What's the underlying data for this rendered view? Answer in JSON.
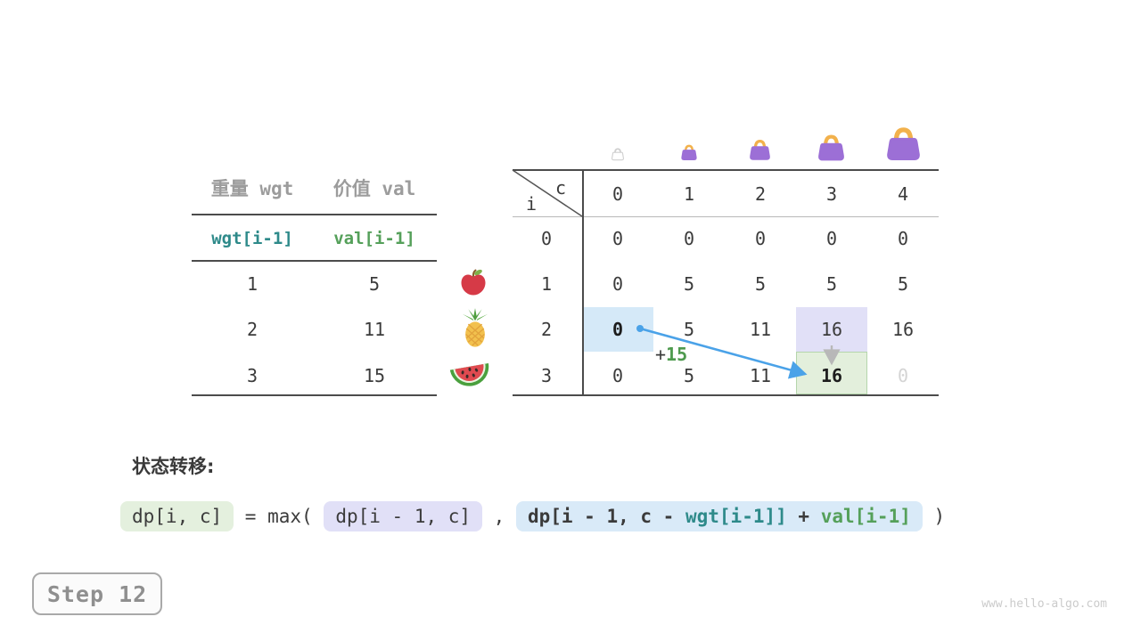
{
  "items_table": {
    "headers": [
      "重量 wgt",
      "价值 val"
    ],
    "index_row": [
      "wgt[i-1]",
      "val[i-1]"
    ],
    "rows": [
      {
        "wgt": "1",
        "val": "5"
      },
      {
        "wgt": "2",
        "val": "11"
      },
      {
        "wgt": "3",
        "val": "15"
      }
    ],
    "fruit_icons": [
      "apple-icon",
      "pineapple-icon",
      "watermelon-icon"
    ]
  },
  "dp_table": {
    "corner": {
      "col_var": "c",
      "row_var": "i"
    },
    "col_headers": [
      "0",
      "1",
      "2",
      "3",
      "4"
    ],
    "row_headers": [
      "0",
      "1",
      "2",
      "3"
    ],
    "cells": [
      [
        "0",
        "0",
        "0",
        "0",
        "0"
      ],
      [
        "0",
        "5",
        "5",
        "5",
        "5"
      ],
      [
        "0",
        "5",
        "11",
        "16",
        "16"
      ],
      [
        "0",
        "5",
        "11",
        "16",
        "0"
      ]
    ],
    "highlights": [
      {
        "row": 2,
        "col": 0,
        "style": "source-blue",
        "bold": true
      },
      {
        "row": 2,
        "col": 3,
        "style": "source-lavender",
        "bold": false
      },
      {
        "row": 3,
        "col": 3,
        "style": "target-green",
        "bold": true
      },
      {
        "row": 3,
        "col": 4,
        "style": "faded",
        "bold": false
      }
    ],
    "bag_icons": [
      "bag-empty-icon",
      "bag-small-icon",
      "bag-medium-icon",
      "bag-large-icon",
      "bag-xlarge-icon"
    ],
    "annotation": {
      "plus": "+",
      "value": "15"
    }
  },
  "formula": {
    "heading": "状态转移:",
    "lhs": "dp[i, c]",
    "eq_max": " = max( ",
    "arg1": "dp[i - 1, c]",
    "comma": " , ",
    "arg2_parts": [
      {
        "text": "dp[i - 1, c - ",
        "color": "dark"
      },
      {
        "text": "wgt[i-1]]",
        "color": "teal"
      },
      {
        "text": " + ",
        "color": "dark"
      },
      {
        "text": "val[i-1]",
        "color": "green"
      }
    ],
    "close": " )"
  },
  "step_badge": "Step 12",
  "watermark": "www.hello-algo.com",
  "colors": {
    "teal": "#2e8a8a",
    "green": "#55a05a",
    "arrow_blue": "#4aa2e8",
    "arrow_gray": "#b8b8b8",
    "cell_blue": "#d5e9f8",
    "cell_lavender": "#e1e0f7",
    "cell_green": "#e3efdc",
    "faded_text": "#d4d4d4",
    "bag_purple": "#9c6fd6",
    "bag_handle": "#f2b14c"
  }
}
